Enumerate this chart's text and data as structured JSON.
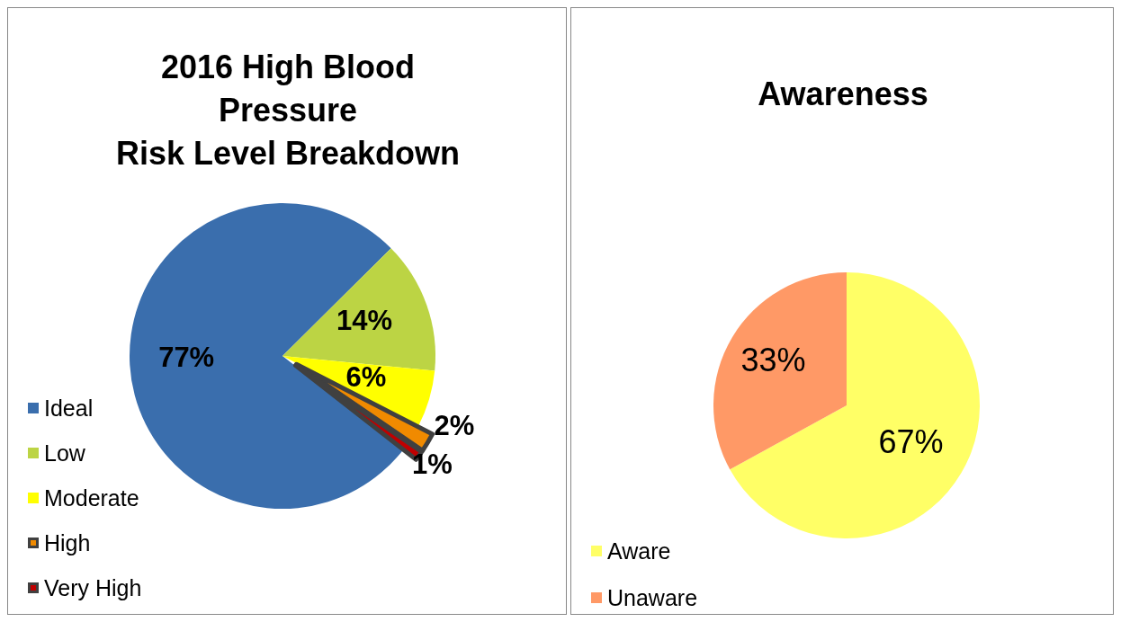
{
  "chart_data": [
    {
      "type": "pie",
      "title": "2016 High Blood\nPressure\nRisk Level Breakdown",
      "categories": [
        "Ideal",
        "Low",
        "Moderate",
        "High",
        "Very High"
      ],
      "values": [
        77,
        14,
        6,
        2,
        1
      ],
      "colors": [
        "#3a6ead",
        "#bcd444",
        "#ffff00",
        "#f08a00",
        "#c00000"
      ],
      "value_labels": [
        "77%",
        "14%",
        "6%",
        "2%",
        "1%"
      ],
      "legend": "bottom left"
    },
    {
      "type": "pie",
      "title": "Awareness",
      "categories": [
        "Aware",
        "Unaware"
      ],
      "values": [
        67,
        33
      ],
      "colors": [
        "#ffff66",
        "#ff9966"
      ],
      "value_labels": [
        "67%",
        "33%"
      ],
      "legend": "bottom left"
    }
  ]
}
